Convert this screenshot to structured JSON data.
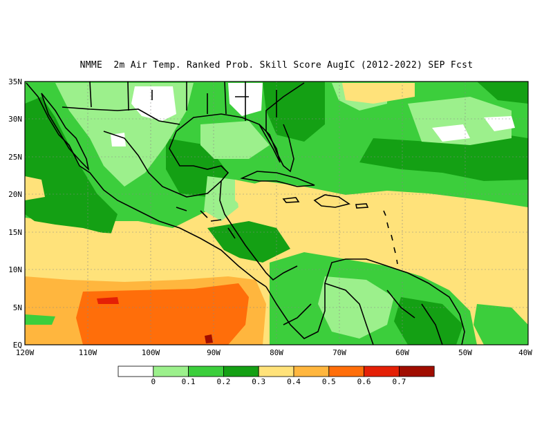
{
  "title": "NMME  2m Air Temp. Ranked Prob. Skill Score AugIC (2012-2022) SEP Fcst",
  "map": {
    "lon_range": [
      "120W",
      "40W"
    ],
    "lat_range": [
      "EQ",
      "35N"
    ],
    "lat_labels": [
      "EQ",
      "5N",
      "10N",
      "15N",
      "20N",
      "25N",
      "30N",
      "35N"
    ],
    "lon_labels": [
      "120W",
      "110W",
      "100W",
      "90W",
      "80W",
      "70W",
      "60W",
      "50W",
      "40W"
    ],
    "grid": "dotted",
    "coastlines": "black"
  },
  "legend": {
    "colors": [
      "#ffffff",
      "#9cf08c",
      "#3cce3c",
      "#14a014",
      "#ffe27a",
      "#ffb63e",
      "#ff6e0a",
      "#e42006",
      "#a00d00"
    ],
    "labels": [
      "0",
      "0.1",
      "0.2",
      "0.3",
      "0.4",
      "0.5",
      "0.6",
      "0.7"
    ]
  }
}
